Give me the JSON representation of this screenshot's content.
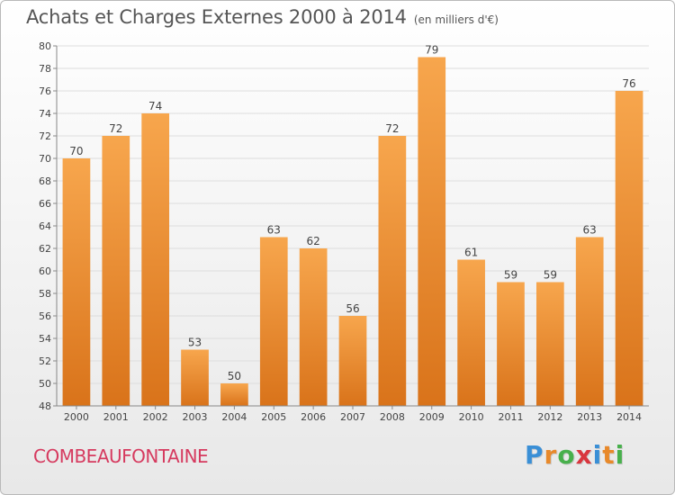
{
  "header": {
    "title": "Achats et Charges Externes 2000 à 2014",
    "unit": "(en milliers d'€)"
  },
  "footer": {
    "commune": "COMBEAUFONTAINE",
    "brand_letters": [
      "P",
      "r",
      "o",
      "x",
      "i",
      "t",
      "i"
    ],
    "brand_colors": [
      "#3a8fd6",
      "#e8892a",
      "#48b04c",
      "#d9363e",
      "#3a8fd6",
      "#e8892a",
      "#48b04c"
    ]
  },
  "colors": {
    "bar_top": "#f7a64d",
    "bar_bottom": "#d9731a",
    "grid": "#dddddd",
    "axis_text": "#444444"
  },
  "chart_data": {
    "type": "bar",
    "title": "Achats et Charges Externes 2000 à 2014",
    "subtitle": "(en milliers d'€)",
    "xlabel": "",
    "ylabel": "",
    "categories": [
      "2000",
      "2001",
      "2002",
      "2003",
      "2004",
      "2005",
      "2006",
      "2007",
      "2008",
      "2009",
      "2010",
      "2011",
      "2012",
      "2013",
      "2014"
    ],
    "values": [
      70,
      72,
      74,
      53,
      50,
      63,
      62,
      56,
      72,
      79,
      61,
      59,
      59,
      63,
      76
    ],
    "ylim": [
      48,
      80
    ],
    "yticks": [
      48,
      50,
      52,
      54,
      56,
      58,
      60,
      62,
      64,
      66,
      68,
      70,
      72,
      74,
      76,
      78,
      80
    ],
    "grid": true,
    "data_labels": true
  }
}
